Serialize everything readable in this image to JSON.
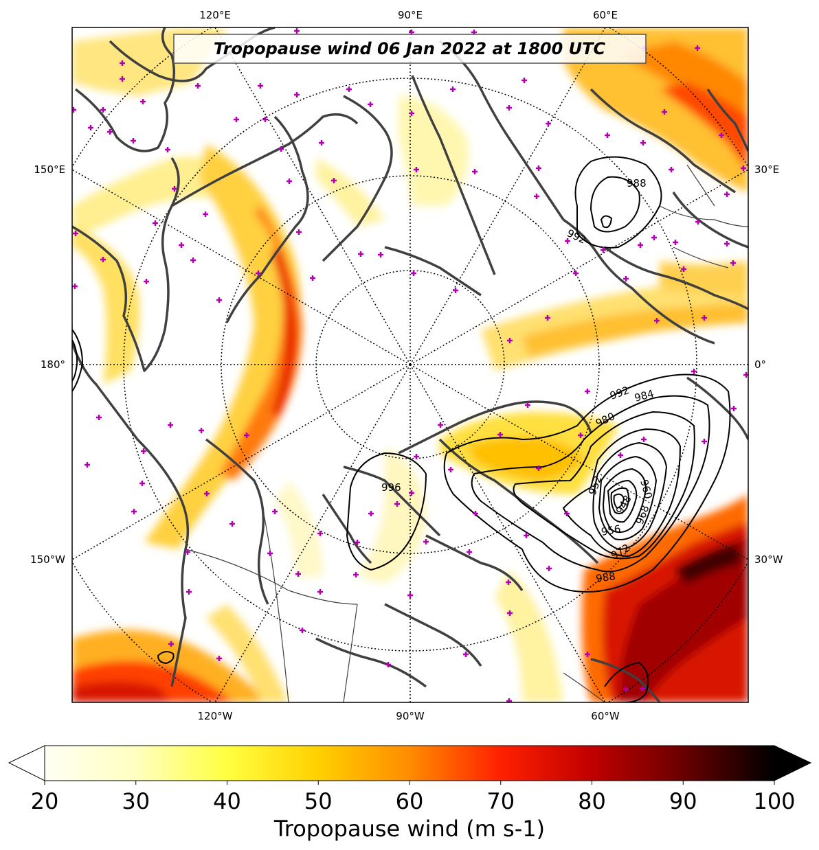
{
  "title": "Tropopause wind 06 Jan 2022 at 1800 UTC",
  "lon_labels": {
    "top": [
      "120°E",
      "90°E",
      "60°E"
    ],
    "bottom": [
      "120°W",
      "90°W",
      "60°W"
    ],
    "left": [
      "150°E",
      "180°",
      "150°W"
    ],
    "right": [
      "30°E",
      "0°",
      "30°W"
    ]
  },
  "contour_labels": [
    "988",
    "992",
    "992",
    "984",
    "980",
    "960",
    "952",
    "948",
    "956",
    "968",
    "972",
    "988",
    "996"
  ],
  "colorbar": {
    "min": 20,
    "max": 100,
    "ticks": [
      "20",
      "30",
      "40",
      "50",
      "60",
      "70",
      "80",
      "90",
      "100"
    ],
    "label": "Tropopause wind (m s-1)",
    "colors": [
      "#fffff4",
      "#ffffc0",
      "#ffff40",
      "#ffd000",
      "#ff8c00",
      "#ff2000",
      "#c00000",
      "#6a0000",
      "#000000"
    ]
  },
  "colors": {
    "coast": "#404040",
    "marker": "#b000b0",
    "contour": "#000000"
  }
}
